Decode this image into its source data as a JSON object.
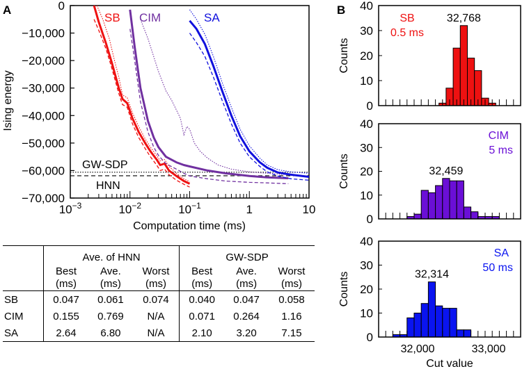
{
  "chart_data": [
    {
      "panel": "A",
      "type": "line",
      "xlabel": "Computation time (ms)",
      "ylabel": "Ising energy",
      "xscale": "log",
      "xlim": [
        0.001,
        10
      ],
      "ylim": [
        -70000,
        0
      ],
      "xticks": [
        0.001,
        0.01,
        0.1,
        1,
        10
      ],
      "xtick_labels": [
        {
          "base": "10",
          "exp": "−3"
        },
        {
          "base": "10",
          "exp": "−2"
        },
        {
          "base": "10",
          "exp": "−1"
        },
        {
          "base": "1",
          "exp": ""
        },
        {
          "base": "10",
          "exp": ""
        }
      ],
      "yticks": [
        0,
        -10000,
        -20000,
        -30000,
        -40000,
        -50000,
        -60000,
        -70000
      ],
      "ytick_labels": [
        "0",
        "−10,000",
        "−20,000",
        "−30,000",
        "−40,000",
        "−50,000",
        "−60,000",
        "−70,000"
      ],
      "reference_lines": [
        {
          "name": "GW-SDP",
          "y": -60600,
          "style": "dotted"
        },
        {
          "name": "HNN",
          "y": -61900,
          "style": "dashed"
        }
      ],
      "series": [
        {
          "name": "SB",
          "label": "SB",
          "color": "#ee1111",
          "average": [
            [
              0.0025,
              0
            ],
            [
              0.003,
              -6000
            ],
            [
              0.004,
              -14000
            ],
            [
              0.005,
              -21000
            ],
            [
              0.0065,
              -30000
            ],
            [
              0.0075,
              -34000
            ],
            [
              0.009,
              -35500
            ],
            [
              0.011,
              -41000
            ],
            [
              0.014,
              -46000
            ],
            [
              0.018,
              -50000
            ],
            [
              0.022,
              -53000
            ],
            [
              0.028,
              -56000
            ],
            [
              0.032,
              -58000
            ],
            [
              0.038,
              -57500
            ],
            [
              0.045,
              -60000
            ],
            [
              0.06,
              -62000
            ],
            [
              0.08,
              -63800
            ],
            [
              0.1,
              -64800
            ]
          ],
          "best": [
            [
              0.0025,
              -5000
            ],
            [
              0.003,
              -9000
            ],
            [
              0.004,
              -16000
            ],
            [
              0.005,
              -23000
            ],
            [
              0.0065,
              -32000
            ],
            [
              0.0075,
              -36000
            ],
            [
              0.009,
              -37000
            ],
            [
              0.011,
              -43000
            ],
            [
              0.014,
              -48000
            ],
            [
              0.018,
              -52000
            ],
            [
              0.022,
              -55000
            ],
            [
              0.028,
              -58000
            ],
            [
              0.032,
              -60000
            ],
            [
              0.038,
              -59500
            ],
            [
              0.045,
              -61500
            ],
            [
              0.06,
              -63500
            ],
            [
              0.08,
              -65000
            ],
            [
              0.1,
              -66000
            ]
          ],
          "worst": [
            [
              0.0028,
              0
            ],
            [
              0.0035,
              -5000
            ],
            [
              0.0045,
              -12000
            ],
            [
              0.0055,
              -20000
            ],
            [
              0.0065,
              -26000
            ],
            [
              0.0075,
              -32500
            ],
            [
              0.009,
              -33500
            ],
            [
              0.011,
              -39000
            ],
            [
              0.014,
              -44000
            ],
            [
              0.018,
              -48500
            ],
            [
              0.022,
              -51500
            ],
            [
              0.028,
              -54500
            ],
            [
              0.032,
              -56500
            ],
            [
              0.038,
              -56000
            ],
            [
              0.045,
              -58500
            ],
            [
              0.06,
              -61000
            ],
            [
              0.08,
              -63000
            ],
            [
              0.1,
              -64000
            ]
          ]
        },
        {
          "name": "CIM",
          "label": "CIM",
          "color": "#7030a0",
          "average": [
            [
              0.01,
              -1500
            ],
            [
              0.012,
              -15000
            ],
            [
              0.015,
              -30000
            ],
            [
              0.02,
              -42000
            ],
            [
              0.025,
              -48000
            ],
            [
              0.03,
              -51500
            ],
            [
              0.04,
              -55000
            ],
            [
              0.06,
              -57000
            ],
            [
              0.08,
              -58000
            ],
            [
              0.1,
              -58500
            ],
            [
              0.2,
              -60000
            ],
            [
              0.4,
              -61000
            ],
            [
              1,
              -62000
            ],
            [
              2,
              -62500
            ],
            [
              4.5,
              -62800
            ]
          ],
          "best": [
            [
              0.01,
              -8500
            ],
            [
              0.012,
              -20000
            ],
            [
              0.015,
              -35000
            ],
            [
              0.02,
              -46000
            ],
            [
              0.025,
              -51500
            ],
            [
              0.03,
              -54500
            ],
            [
              0.04,
              -57500
            ],
            [
              0.06,
              -59500
            ],
            [
              0.08,
              -61000
            ],
            [
              0.1,
              -62000
            ],
            [
              0.2,
              -63000
            ],
            [
              0.4,
              -63800
            ],
            [
              1,
              -64300
            ],
            [
              2,
              -64500
            ],
            [
              4.5,
              -64800
            ]
          ],
          "worst": [
            [
              0.015,
              -5000
            ],
            [
              0.02,
              -12000
            ],
            [
              0.03,
              -24000
            ],
            [
              0.04,
              -31000
            ],
            [
              0.05,
              -34500
            ],
            [
              0.06,
              -38000
            ],
            [
              0.07,
              -41000
            ],
            [
              0.08,
              -47000
            ],
            [
              0.09,
              -44000
            ],
            [
              0.1,
              -45000
            ],
            [
              0.12,
              -50000
            ],
            [
              0.15,
              -53000
            ],
            [
              0.2,
              -55500
            ],
            [
              0.3,
              -58000
            ],
            [
              0.5,
              -59500
            ],
            [
              1,
              -60500
            ],
            [
              2,
              -61000
            ],
            [
              4.5,
              -61500
            ]
          ]
        },
        {
          "name": "SA",
          "label": "SA",
          "color": "#1010dd",
          "average": [
            [
              0.1,
              -5500
            ],
            [
              0.13,
              -8500
            ],
            [
              0.18,
              -14000
            ],
            [
              0.25,
              -22000
            ],
            [
              0.35,
              -31000
            ],
            [
              0.5,
              -40000
            ],
            [
              0.7,
              -47500
            ],
            [
              1,
              -53000
            ],
            [
              1.5,
              -57000
            ],
            [
              2,
              -59000
            ],
            [
              3,
              -60700
            ],
            [
              5,
              -61500
            ],
            [
              10,
              -62300
            ]
          ],
          "best": [
            [
              0.1,
              -10000
            ],
            [
              0.13,
              -13500
            ],
            [
              0.18,
              -18500
            ],
            [
              0.25,
              -26000
            ],
            [
              0.35,
              -34500
            ],
            [
              0.5,
              -43000
            ],
            [
              0.7,
              -50000
            ],
            [
              1,
              -55000
            ],
            [
              1.5,
              -58500
            ],
            [
              2,
              -60500
            ],
            [
              3,
              -62000
            ],
            [
              5,
              -63000
            ],
            [
              10,
              -63500
            ]
          ],
          "worst": [
            [
              0.1,
              -1500
            ],
            [
              0.13,
              -5000
            ],
            [
              0.18,
              -10500
            ],
            [
              0.25,
              -18500
            ],
            [
              0.35,
              -28000
            ],
            [
              0.5,
              -37000
            ],
            [
              0.7,
              -45000
            ],
            [
              1,
              -51000
            ],
            [
              1.5,
              -55500
            ],
            [
              2,
              -58000
            ],
            [
              3,
              -59700
            ],
            [
              5,
              -60500
            ],
            [
              10,
              -61000
            ]
          ]
        }
      ],
      "legend": "in-plot labels at top"
    },
    {
      "panel": "B-SB",
      "type": "bar",
      "title": "SB",
      "subtitle": "0.5 ms",
      "color": "#ee1111",
      "annotation": "32,768",
      "ylabel": "Counts",
      "xlim": [
        31450,
        33450
      ],
      "ylim": [
        0,
        40
      ],
      "yticks": [
        0,
        10,
        20,
        30,
        40
      ],
      "bin_width": 100,
      "bin_starts": [
        32300,
        32400,
        32500,
        32600,
        32700,
        32800,
        32900,
        33000
      ],
      "values": [
        1,
        7,
        23,
        32,
        19,
        14,
        3,
        1
      ]
    },
    {
      "panel": "B-CIM",
      "type": "bar",
      "title": "CIM",
      "subtitle": "5 ms",
      "color": "#6a0fd6",
      "annotation": "32,459",
      "ylabel": "Counts",
      "xlim": [
        31450,
        33450
      ],
      "ylim": [
        0,
        40
      ],
      "yticks": [
        0,
        10,
        20,
        30,
        40
      ],
      "bin_width": 100,
      "bin_starts": [
        31850,
        31950,
        32050,
        32150,
        32250,
        32350,
        32450,
        32550,
        32650,
        32750,
        32850,
        32950,
        33050
      ],
      "values": [
        1,
        2,
        12,
        11,
        14,
        17,
        16,
        16,
        5,
        3,
        1,
        1,
        1
      ]
    },
    {
      "panel": "B-SA",
      "type": "bar",
      "title": "SA",
      "subtitle": "50 ms",
      "color": "#0a14f0",
      "annotation": "32,314",
      "ylabel": "Counts",
      "xlabel": "Cut value",
      "xlim": [
        31450,
        33450
      ],
      "ylim": [
        0,
        40
      ],
      "yticks": [
        0,
        10,
        20,
        30,
        40
      ],
      "xticks": [
        32000,
        33000
      ],
      "xtick_labels": [
        "32,000",
        "33,000"
      ],
      "bin_width": 100,
      "bin_starts": [
        31650,
        31750,
        31850,
        31950,
        32050,
        32150,
        32250,
        32350,
        32450,
        32550,
        32650
      ],
      "values": [
        1,
        1,
        8,
        10,
        14,
        23,
        13,
        12,
        12,
        3,
        3
      ]
    }
  ],
  "panel_labels": {
    "a": "A",
    "b": "B"
  },
  "table": {
    "groups": [
      "Ave. of HNN",
      "GW-SDP"
    ],
    "columns": [
      {
        "l1": "Best",
        "l2": "(ms)"
      },
      {
        "l1": "Ave.",
        "l2": "(ms)"
      },
      {
        "l1": "Worst",
        "l2": "(ms)"
      },
      {
        "l1": "Best",
        "l2": "(ms)"
      },
      {
        "l1": "Ave.",
        "l2": "(ms)"
      },
      {
        "l1": "Worst",
        "l2": "(ms)"
      }
    ],
    "rows": [
      {
        "name": "SB",
        "cells": [
          "0.047",
          "0.061",
          "0.074",
          "0.040",
          "0.047",
          "0.058"
        ]
      },
      {
        "name": "CIM",
        "cells": [
          "0.155",
          "0.769",
          "N/A",
          "0.071",
          "0.264",
          "1.16"
        ]
      },
      {
        "name": "SA",
        "cells": [
          "2.64",
          "6.80",
          "N/A",
          "2.10",
          "3.20",
          "7.15"
        ]
      }
    ]
  }
}
